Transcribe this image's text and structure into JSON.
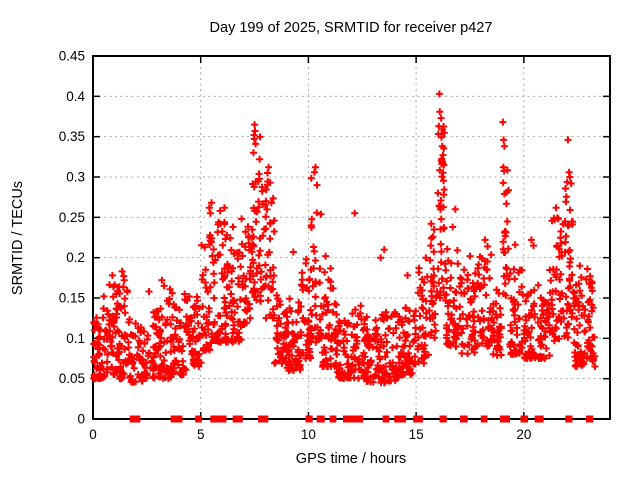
{
  "chart_data": {
    "type": "scatter",
    "title": "Day 199 of 2025, SRMTID for receiver p427",
    "xlabel": "GPS time / hours",
    "ylabel": "SRMTID / TECUs",
    "xlim": [
      0,
      24
    ],
    "ylim": [
      0,
      0.45
    ],
    "xtick_values": [
      0,
      5,
      10,
      15,
      20
    ],
    "xtick_labels": [
      "0",
      "5",
      "10",
      "15",
      "20"
    ],
    "ytick_values": [
      0,
      0.05,
      0.1,
      0.15,
      0.2,
      0.25,
      0.3,
      0.35,
      0.4,
      0.45
    ],
    "ytick_labels": [
      "0",
      "0.05",
      "0.1",
      "0.15",
      "0.2",
      "0.25",
      "0.3",
      "0.35",
      "0.4",
      "0.45"
    ],
    "grid": {
      "x_values": [
        5,
        10,
        15,
        20
      ],
      "y_values": [
        0.05,
        0.1,
        0.15,
        0.2,
        0.25,
        0.3,
        0.35,
        0.4
      ],
      "style": "dashed-gray"
    },
    "legend": "none",
    "series_name": "SRMTID",
    "marker": {
      "shape": "plus",
      "color": "#ff0000",
      "size": 7,
      "stroke_width": 2
    },
    "peak_points": [
      [
        0.5,
        0.152
      ],
      [
        0.9,
        0.178
      ],
      [
        1.35,
        0.183
      ],
      [
        1.45,
        0.172
      ],
      [
        2.6,
        0.158
      ],
      [
        3.2,
        0.172
      ],
      [
        3.3,
        0.165
      ],
      [
        4.25,
        0.155
      ],
      [
        5.4,
        0.262
      ],
      [
        5.45,
        0.255
      ],
      [
        5.5,
        0.268
      ],
      [
        5.9,
        0.258
      ],
      [
        6.1,
        0.262
      ],
      [
        6.5,
        0.238
      ],
      [
        6.9,
        0.248
      ],
      [
        7.45,
        0.33
      ],
      [
        7.48,
        0.352
      ],
      [
        7.5,
        0.365
      ],
      [
        7.52,
        0.357
      ],
      [
        7.55,
        0.341
      ],
      [
        8.1,
        0.305
      ],
      [
        8.15,
        0.312
      ],
      [
        8.22,
        0.293
      ],
      [
        9.3,
        0.207
      ],
      [
        9.9,
        0.198
      ],
      [
        10.28,
        0.306
      ],
      [
        10.33,
        0.312
      ],
      [
        10.4,
        0.29
      ],
      [
        10.8,
        0.202
      ],
      [
        12.15,
        0.255
      ],
      [
        13.35,
        0.2
      ],
      [
        13.52,
        0.21
      ],
      [
        14.6,
        0.178
      ],
      [
        15.45,
        0.2
      ],
      [
        15.7,
        0.242
      ],
      [
        15.78,
        0.226
      ],
      [
        16.08,
        0.403
      ],
      [
        16.1,
        0.381
      ],
      [
        16.16,
        0.373
      ],
      [
        16.22,
        0.359
      ],
      [
        16.7,
        0.238
      ],
      [
        16.82,
        0.26
      ],
      [
        17.5,
        0.202
      ],
      [
        18.2,
        0.222
      ],
      [
        19.03,
        0.368
      ],
      [
        19.06,
        0.346
      ],
      [
        19.1,
        0.338
      ],
      [
        19.6,
        0.216
      ],
      [
        20.35,
        0.222
      ],
      [
        20.45,
        0.215
      ],
      [
        21.5,
        0.262
      ],
      [
        21.6,
        0.248
      ],
      [
        22.05,
        0.346
      ],
      [
        22.1,
        0.306
      ],
      [
        22.14,
        0.3
      ],
      [
        22.2,
        0.292
      ],
      [
        22.6,
        0.19
      ],
      [
        22.95,
        0.186
      ]
    ],
    "density_bands_format": [
      "x_start_hours",
      "x_end_hours",
      "point_count",
      "y_min_TECUs",
      "y_max_TECUs",
      "bottom_bias_exponent"
    ],
    "density_bands": [
      [
        0.02,
        0.6,
        60,
        0.05,
        0.14,
        1.8
      ],
      [
        0.6,
        1.15,
        50,
        0.055,
        0.17,
        1.8
      ],
      [
        1.15,
        1.7,
        48,
        0.05,
        0.185,
        2.2
      ],
      [
        1.7,
        2.35,
        40,
        0.045,
        0.12,
        1.6
      ],
      [
        2.35,
        3.05,
        46,
        0.05,
        0.135,
        1.7
      ],
      [
        3.05,
        3.7,
        55,
        0.05,
        0.165,
        2.0
      ],
      [
        3.7,
        4.4,
        48,
        0.055,
        0.15,
        1.8
      ],
      [
        4.4,
        5.02,
        52,
        0.065,
        0.155,
        1.6
      ],
      [
        5.02,
        5.62,
        45,
        0.085,
        0.235,
        1.6
      ],
      [
        5.62,
        6.32,
        58,
        0.095,
        0.25,
        1.8
      ],
      [
        6.32,
        7.0,
        52,
        0.095,
        0.225,
        1.6
      ],
      [
        7.0,
        7.4,
        32,
        0.115,
        0.265,
        1.3
      ],
      [
        7.4,
        7.92,
        48,
        0.14,
        0.35,
        1.2
      ],
      [
        7.92,
        8.42,
        40,
        0.125,
        0.305,
        1.5
      ],
      [
        8.42,
        9.0,
        46,
        0.068,
        0.155,
        1.6
      ],
      [
        9.0,
        9.62,
        50,
        0.06,
        0.152,
        1.8
      ],
      [
        9.62,
        10.12,
        40,
        0.075,
        0.195,
        1.6
      ],
      [
        10.12,
        10.6,
        36,
        0.095,
        0.308,
        1.5
      ],
      [
        10.6,
        11.3,
        52,
        0.065,
        0.188,
        1.8
      ],
      [
        11.3,
        12.0,
        55,
        0.05,
        0.132,
        1.6
      ],
      [
        12.0,
        12.65,
        48,
        0.05,
        0.142,
        1.7
      ],
      [
        12.65,
        13.4,
        55,
        0.045,
        0.127,
        1.6
      ],
      [
        13.4,
        14.2,
        55,
        0.045,
        0.137,
        1.7
      ],
      [
        14.2,
        14.9,
        50,
        0.055,
        0.142,
        1.6
      ],
      [
        14.9,
        15.62,
        46,
        0.068,
        0.19,
        1.7
      ],
      [
        15.62,
        15.97,
        26,
        0.1,
        0.255,
        1.3
      ],
      [
        15.97,
        16.35,
        46,
        0.15,
        0.372,
        1.2
      ],
      [
        16.35,
        17.1,
        52,
        0.088,
        0.215,
        1.7
      ],
      [
        17.1,
        17.8,
        46,
        0.08,
        0.19,
        1.7
      ],
      [
        17.8,
        18.5,
        46,
        0.09,
        0.218,
        1.7
      ],
      [
        18.5,
        19.0,
        36,
        0.078,
        0.172,
        1.6
      ],
      [
        19.0,
        19.3,
        26,
        0.15,
        0.335,
        1.2
      ],
      [
        19.3,
        20.0,
        50,
        0.08,
        0.19,
        1.8
      ],
      [
        20.0,
        20.7,
        50,
        0.075,
        0.168,
        1.7
      ],
      [
        20.7,
        21.2,
        40,
        0.075,
        0.152,
        1.6
      ],
      [
        21.2,
        21.82,
        46,
        0.095,
        0.252,
        1.5
      ],
      [
        21.82,
        22.3,
        42,
        0.1,
        0.305,
        1.4
      ],
      [
        22.3,
        23.3,
        90,
        0.065,
        0.178,
        1.7
      ]
    ],
    "zero_value_segments_hours": [
      [
        1.82,
        2.08
      ],
      [
        3.72,
        4.04
      ],
      [
        4.86,
        4.94
      ],
      [
        5.56,
        5.76
      ],
      [
        5.9,
        6.08
      ],
      [
        6.6,
        6.68
      ],
      [
        6.76,
        6.84
      ],
      [
        7.78,
        8.02
      ],
      [
        9.98,
        10.08
      ],
      [
        10.5,
        10.64
      ],
      [
        11.1,
        11.18
      ],
      [
        11.72,
        11.84
      ],
      [
        11.98,
        12.1
      ],
      [
        12.2,
        12.28
      ],
      [
        12.36,
        12.42
      ],
      [
        13.56,
        13.64
      ],
      [
        14.1,
        14.22
      ],
      [
        14.34,
        14.42
      ],
      [
        14.98,
        15.2
      ],
      [
        16.2,
        16.3
      ],
      [
        17.15,
        17.28
      ],
      [
        18.12,
        18.2
      ],
      [
        19.0,
        19.08
      ],
      [
        19.18,
        19.24
      ],
      [
        19.96,
        20.08
      ],
      [
        20.62,
        20.8
      ],
      [
        22.04,
        22.14
      ],
      [
        23.0,
        23.1
      ]
    ]
  },
  "colors": {
    "marker": "#ff0000",
    "grid": "#a9a9a9",
    "frame": "#000000",
    "background": "#ffffff",
    "text": "#000000"
  }
}
